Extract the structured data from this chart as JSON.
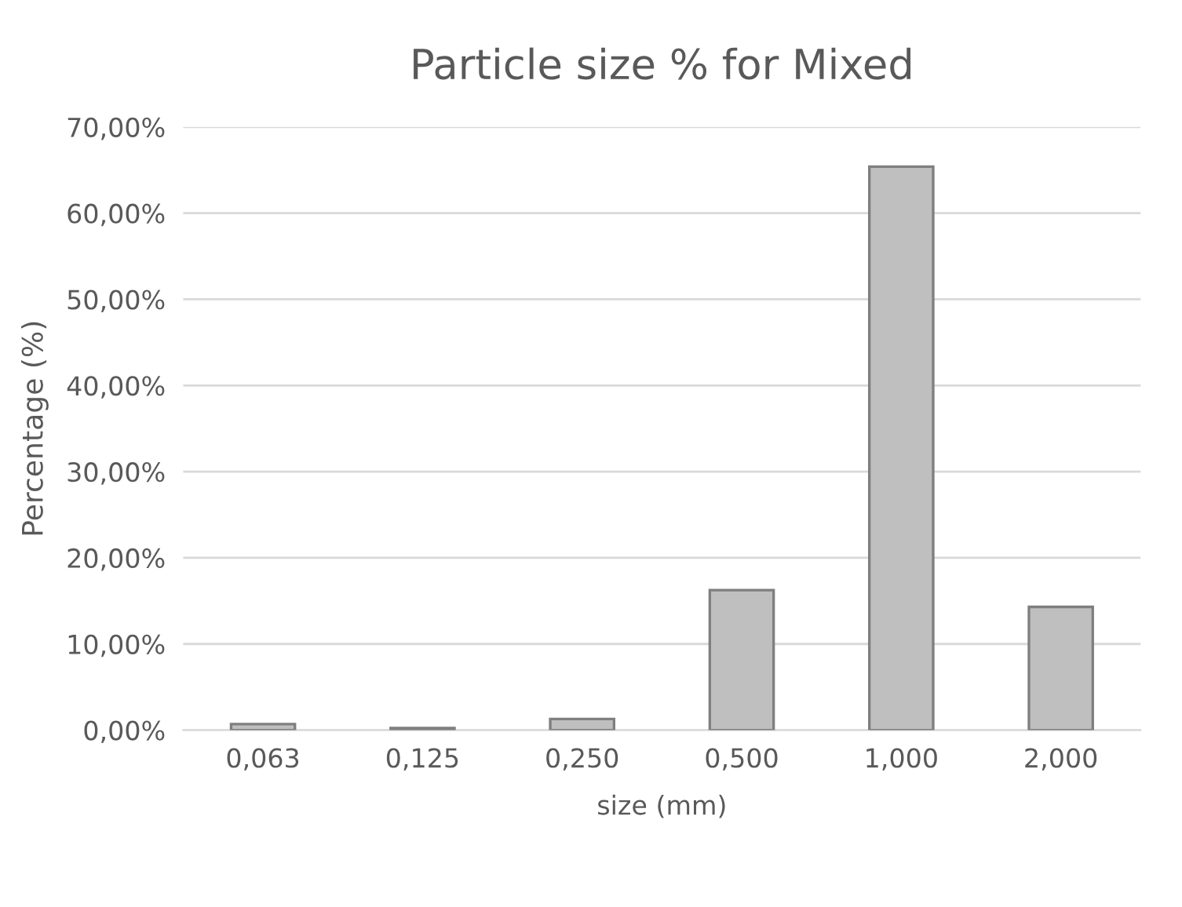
{
  "chart_data": {
    "type": "bar",
    "title": "Particle size % for Mixed",
    "xlabel": "size (mm)",
    "ylabel": "Percentage (%)",
    "categories": [
      "0,063",
      "0,125",
      "0,250",
      "0,500",
      "1,000",
      "2,000"
    ],
    "values": [
      0.7,
      0.25,
      1.3,
      16.25,
      65.4,
      14.3
    ],
    "color": "#bfbfbf",
    "ylim": [
      0,
      70
    ],
    "yticks": [
      {
        "value": 0,
        "label": "0,00%"
      },
      {
        "value": 10,
        "label": "10,00%"
      },
      {
        "value": 20,
        "label": "20,00%"
      },
      {
        "value": 30,
        "label": "30,00%"
      },
      {
        "value": 40,
        "label": "40,00%"
      },
      {
        "value": 50,
        "label": "50,00%"
      },
      {
        "value": 60,
        "label": "60,00%"
      },
      {
        "value": 70,
        "label": "70,00%"
      }
    ],
    "grid": "y",
    "legend": false
  }
}
